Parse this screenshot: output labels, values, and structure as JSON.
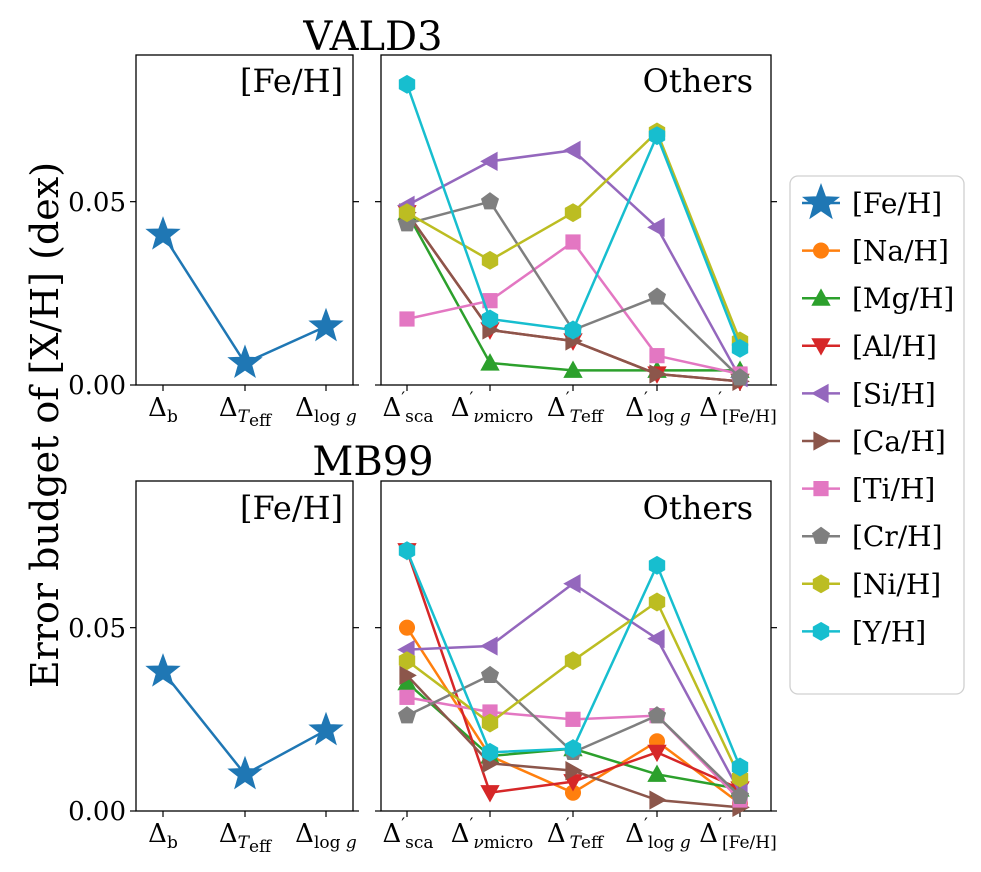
{
  "chart_data": [
    {
      "type": "line",
      "title": "VALD3",
      "panel": "[Fe/H]",
      "categories": [
        "Δb",
        "ΔTeff",
        "Δlog g"
      ],
      "ylim": [
        0,
        0.09
      ],
      "yticks": [
        "0.00",
        "0.05"
      ],
      "ytick_values": [
        0,
        0.05
      ],
      "series": [
        {
          "name": "[Fe/H]",
          "values": [
            0.041,
            0.006,
            0.016
          ]
        }
      ]
    },
    {
      "type": "line",
      "title": "VALD3",
      "panel": "Others",
      "categories": [
        "Δ'sca",
        "Δ'νmicro",
        "Δ'Teff",
        "Δ'log g",
        "Δ'[Fe/H]"
      ],
      "ylim": [
        0,
        0.09
      ],
      "series": [
        {
          "name": "[Mg/H]",
          "values": [
            0.047,
            0.006,
            0.004,
            0.004,
            0.004
          ]
        },
        {
          "name": "[Al/H]",
          "values": [
            0.047,
            0.015,
            0.012,
            0.003,
            0.001
          ]
        },
        {
          "name": "[Ca/H]",
          "values": [
            0.047,
            0.015,
            0.012,
            0.003,
            0.001
          ]
        },
        {
          "name": "[Si/H]",
          "values": [
            0.049,
            0.061,
            0.064,
            0.043,
            0.002
          ]
        },
        {
          "name": "[Ti/H]",
          "values": [
            0.018,
            0.023,
            0.039,
            0.008,
            0.003
          ]
        },
        {
          "name": "[Cr/H]",
          "values": [
            0.044,
            0.05,
            0.015,
            0.024,
            0.002
          ]
        },
        {
          "name": "[Ni/H]",
          "values": [
            0.047,
            0.034,
            0.047,
            0.069,
            0.012
          ]
        },
        {
          "name": "[Y/H]",
          "values": [
            0.082,
            0.018,
            0.015,
            0.068,
            0.01
          ]
        }
      ]
    },
    {
      "type": "line",
      "title": "MB99",
      "panel": "[Fe/H]",
      "categories": [
        "Δb",
        "ΔTeff",
        "Δlog g"
      ],
      "ylim": [
        0,
        0.09
      ],
      "yticks": [
        "0.00",
        "0.05"
      ],
      "ytick_values": [
        0,
        0.05
      ],
      "series": [
        {
          "name": "[Fe/H]",
          "values": [
            0.038,
            0.01,
            0.022
          ]
        }
      ]
    },
    {
      "type": "line",
      "title": "MB99",
      "panel": "Others",
      "categories": [
        "Δ'sca",
        "Δ'νmicro",
        "Δ'Teff",
        "Δ'log g",
        "Δ'[Fe/H]"
      ],
      "ylim": [
        0,
        0.09
      ],
      "series": [
        {
          "name": "[Na/H]",
          "values": [
            0.05,
            0.015,
            0.005,
            0.019,
            0.002
          ]
        },
        {
          "name": "[Mg/H]",
          "values": [
            0.035,
            0.015,
            0.017,
            0.01,
            0.006
          ]
        },
        {
          "name": "[Al/H]",
          "values": [
            0.071,
            0.005,
            0.008,
            0.016,
            0.006
          ]
        },
        {
          "name": "[Si/H]",
          "values": [
            0.044,
            0.045,
            0.062,
            0.047,
            0.005
          ]
        },
        {
          "name": "[Ca/H]",
          "values": [
            0.037,
            0.013,
            0.011,
            0.003,
            0.001
          ]
        },
        {
          "name": "[Ti/H]",
          "values": [
            0.031,
            0.027,
            0.025,
            0.026,
            0.003
          ]
        },
        {
          "name": "[Cr/H]",
          "values": [
            0.026,
            0.037,
            0.016,
            0.026,
            0.004
          ]
        },
        {
          "name": "[Ni/H]",
          "values": [
            0.041,
            0.024,
            0.041,
            0.057,
            0.009
          ]
        },
        {
          "name": "[Y/H]",
          "values": [
            0.071,
            0.016,
            0.017,
            0.067,
            0.012
          ]
        }
      ]
    }
  ],
  "ylabel": "Error budget of [X/H]  (dex)",
  "legend": [
    {
      "name": "[Fe/H]",
      "color": "#1f77b4",
      "marker": "star"
    },
    {
      "name": "[Na/H]",
      "color": "#ff7f0e",
      "marker": "circle"
    },
    {
      "name": "[Mg/H]",
      "color": "#2ca02c",
      "marker": "triangle-up"
    },
    {
      "name": "[Al/H]",
      "color": "#d62728",
      "marker": "triangle-down"
    },
    {
      "name": "[Si/H]",
      "color": "#9467bd",
      "marker": "triangle-left"
    },
    {
      "name": "[Ca/H]",
      "color": "#8c564b",
      "marker": "triangle-right"
    },
    {
      "name": "[Ti/H]",
      "color": "#e377c2",
      "marker": "square"
    },
    {
      "name": "[Cr/H]",
      "color": "#7f7f7f",
      "marker": "pentagon"
    },
    {
      "name": "[Ni/H]",
      "color": "#bcbd22",
      "marker": "hexagon"
    },
    {
      "name": "[Y/H]",
      "color": "#17becf",
      "marker": "hexagon"
    }
  ]
}
